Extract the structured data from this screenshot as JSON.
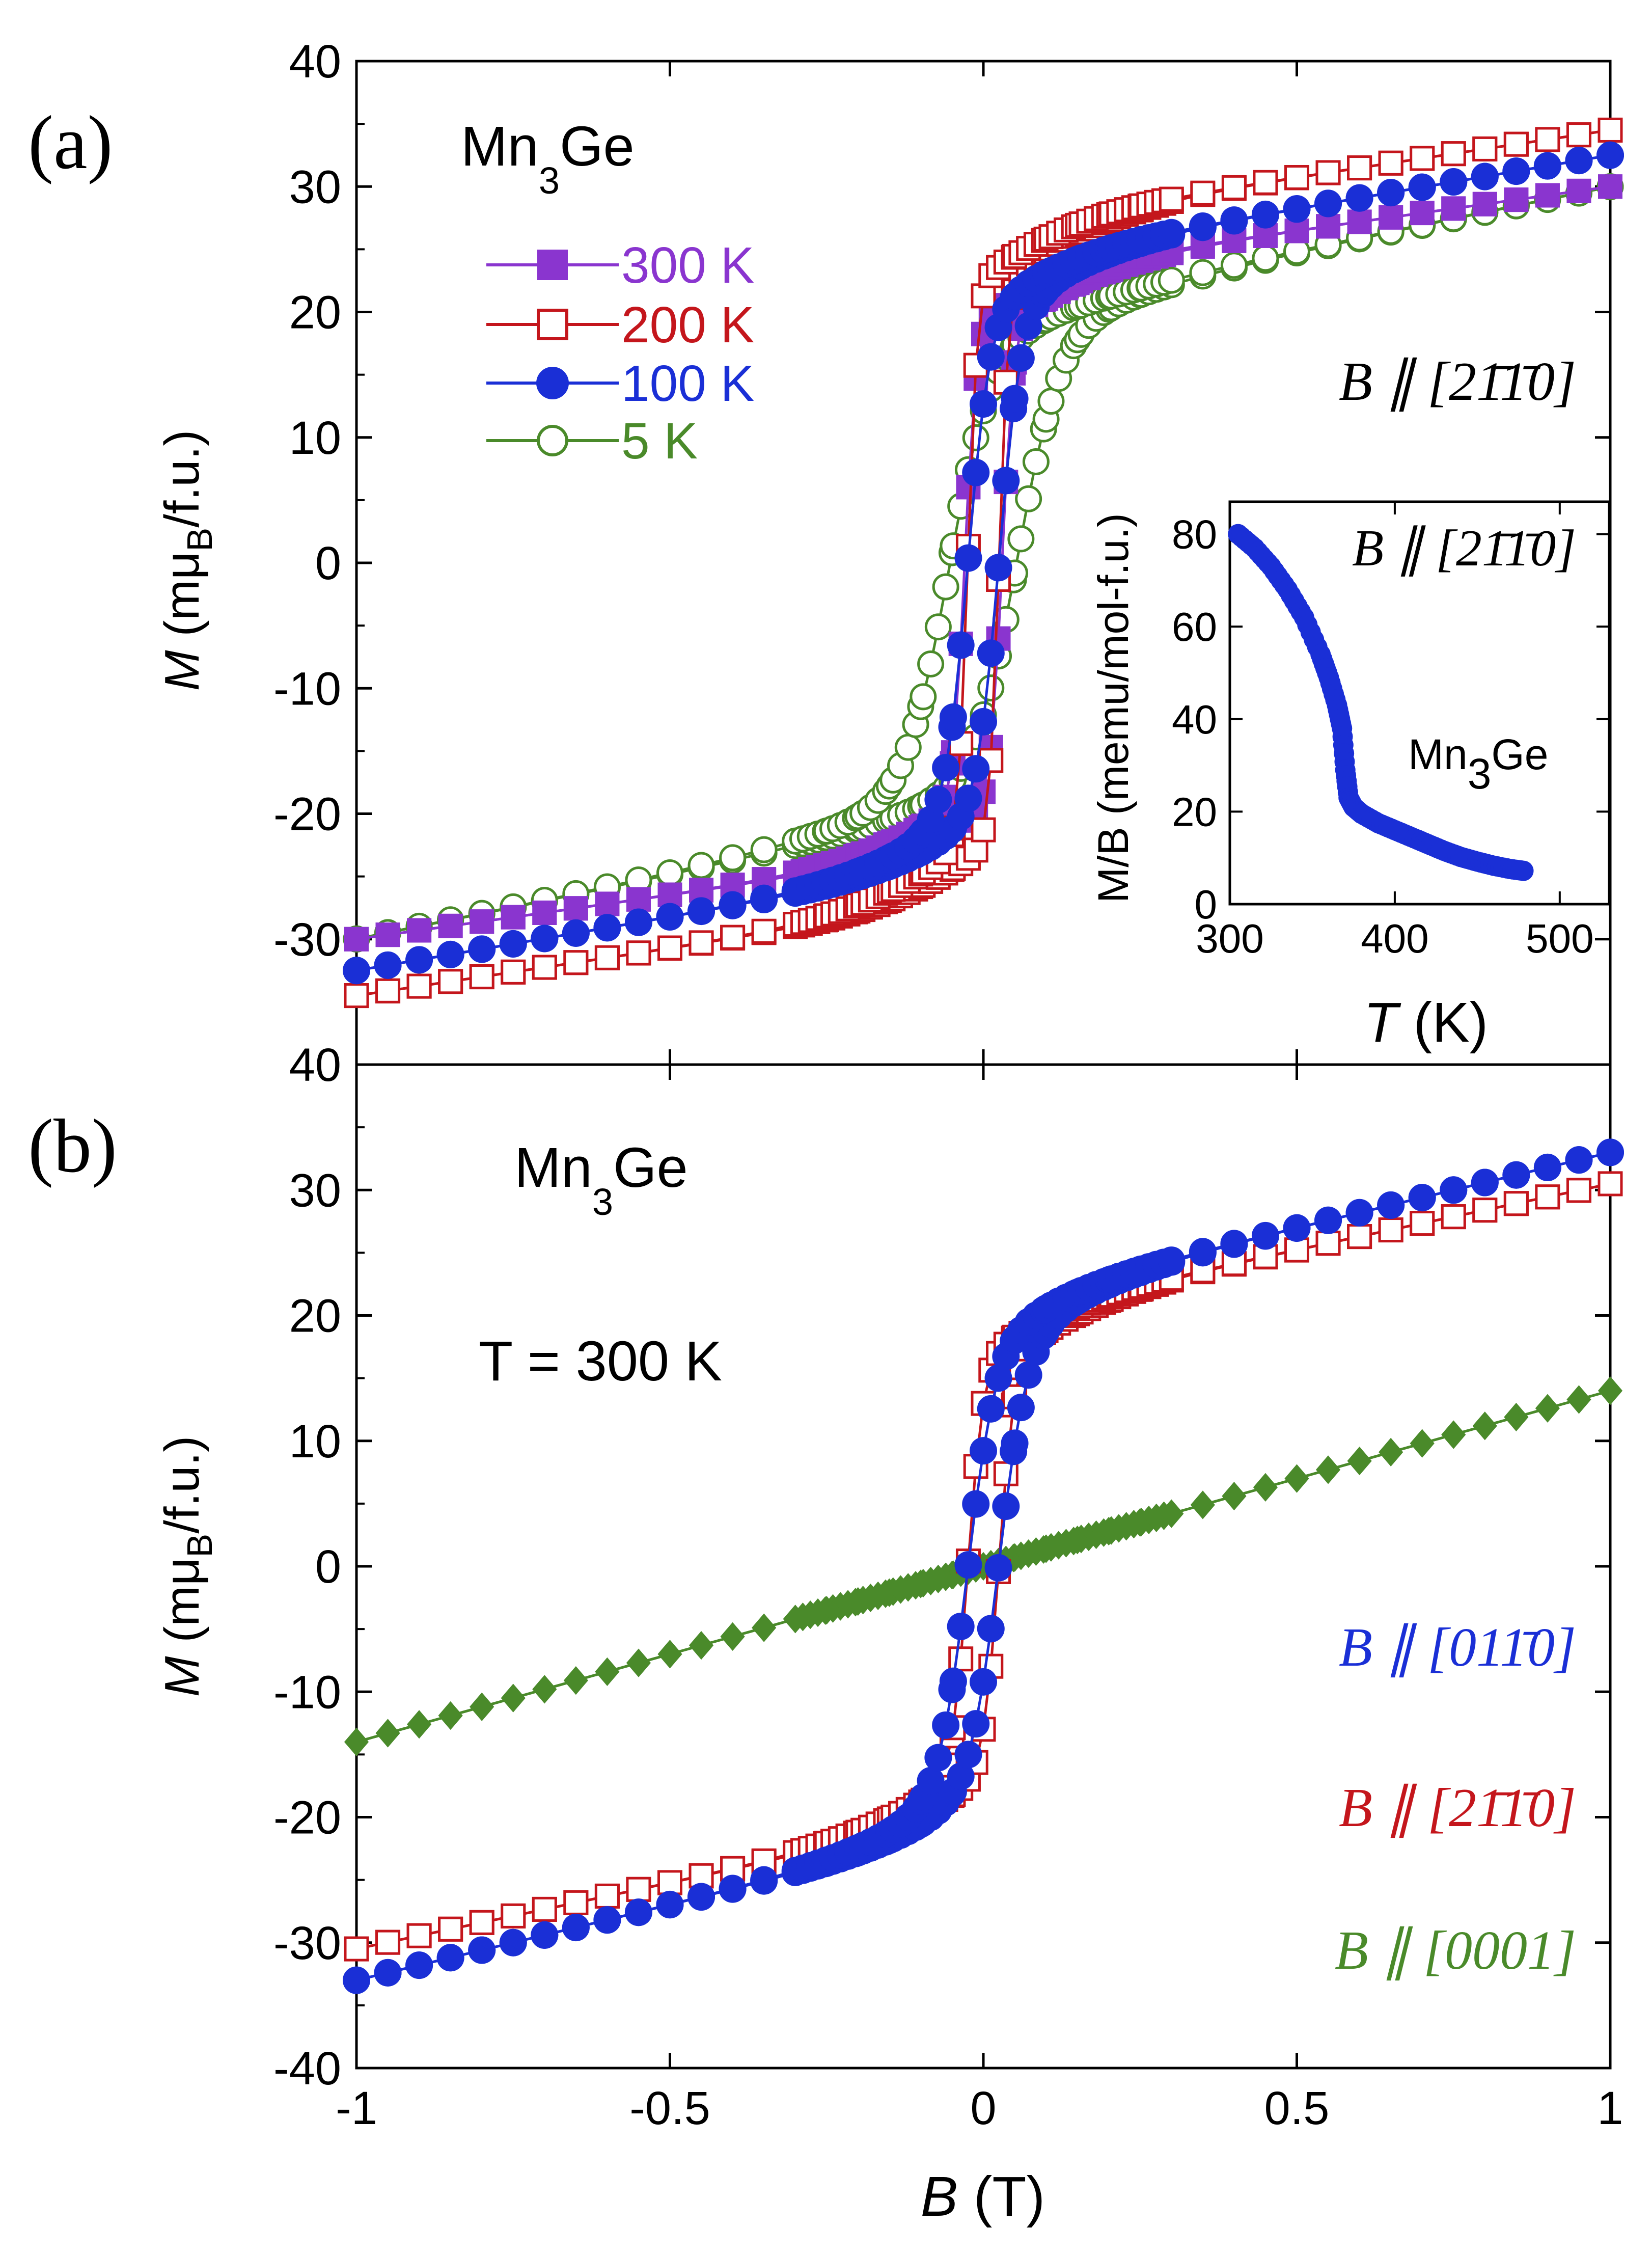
{
  "panel_a": {
    "letter": "(a)",
    "sample": "Mn",
    "sample_sub": "3",
    "sample_tail": "Ge",
    "ylabel_italic": "M",
    "ylabel_rest": " (mμ",
    "ylabel_sub": "B",
    "ylabel_unit": "/f.u.)",
    "direction": "B ∥ [21̄1̄0]",
    "legend": [
      {
        "label": "300 K",
        "color": "#8a35cf",
        "marker": "square-filled"
      },
      {
        "label": "200 K",
        "color": "#c4161c",
        "marker": "square-open"
      },
      {
        "label": "100 K",
        "color": "#1a2fd6",
        "marker": "circle-filled"
      },
      {
        "label": "5 K",
        "color": "#4a8a2a",
        "marker": "circle-open"
      }
    ],
    "yticks": [
      "-30",
      "-20",
      "-10",
      "0",
      "10",
      "20",
      "30",
      "40"
    ]
  },
  "inset": {
    "direction": "B ∥ [21̄1̄0]",
    "sample": "Mn",
    "sample_sub": "3",
    "sample_tail": "Ge",
    "ylabel": "M/B (memu/mol-f.u.)",
    "xlabel_italic": "T",
    "xlabel_rest": " (K)",
    "yticks": [
      "0",
      "20",
      "40",
      "60",
      "80"
    ],
    "xticks": [
      "300",
      "400",
      "500"
    ]
  },
  "panel_b": {
    "letter": "(b)",
    "sample": "Mn",
    "sample_sub": "3",
    "sample_tail": "Ge",
    "temperature_label": "T = 300 K",
    "ylabel_italic": "M",
    "ylabel_rest": " (mμ",
    "ylabel_sub": "B",
    "ylabel_unit": "/f.u.)",
    "directions": [
      {
        "label": "B ∥ [011̄0]",
        "color": "#1a2fd6"
      },
      {
        "label": "B ∥ [21̄1̄0]",
        "color": "#c4161c"
      },
      {
        "label": "B ∥ [0001]",
        "color": "#4a8a2a"
      }
    ],
    "yticks": [
      "-40",
      "-30",
      "-20",
      "-10",
      "0",
      "10",
      "20",
      "30",
      "40"
    ],
    "xticks": [
      "-1",
      "-0.5",
      "0",
      "0.5",
      "1"
    ],
    "xlabel_italic": "B",
    "xlabel_rest": " (T)"
  },
  "chart_data": [
    {
      "type": "line",
      "title": "(a) Mn3Ge, B ∥ [21̄1̄0]",
      "xlabel": "B (T)",
      "ylabel": "M (mμB/f.u.)",
      "xlim": [
        -1,
        1
      ],
      "ylim": [
        -40,
        40
      ],
      "series": [
        {
          "name": "300 K",
          "color": "#8a35cf",
          "Ms": 23,
          "Bc": 0.03,
          "width": 0.018,
          "slope": 7,
          "kind": "square"
        },
        {
          "name": "200 K",
          "color": "#c4161c",
          "Ms": 27,
          "Bc": 0.025,
          "width": 0.015,
          "slope": 7.5,
          "kind": "square"
        },
        {
          "name": "100 K",
          "color": "#1a2fd6",
          "Ms": 24,
          "Bc": 0.025,
          "width": 0.035,
          "slope": 8.5,
          "kind": "square"
        },
        {
          "name": "5 K",
          "color": "#4a8a2a",
          "Ms": 20,
          "Bc": 0.055,
          "width": 0.07,
          "slope": 10,
          "kind": "soft"
        }
      ]
    },
    {
      "type": "line",
      "title": "Inset: M/B vs T",
      "xlabel": "T (K)",
      "ylabel": "M/B (memu/mol-f.u.)",
      "xlim": [
        300,
        530
      ],
      "ylim": [
        0,
        87
      ],
      "series": [
        {
          "name": "B ∥ [21̄1̄0]",
          "color": "#1a2fd6",
          "x": [
            305,
            315,
            325,
            335,
            345,
            355,
            360,
            365,
            368,
            370,
            372,
            375,
            380,
            390,
            400,
            410,
            420,
            430,
            440,
            450,
            460,
            470,
            478
          ],
          "y": [
            80,
            77,
            73,
            68,
            62,
            54,
            49,
            43,
            38,
            29,
            23,
            21,
            19.5,
            17.5,
            16,
            14.5,
            13,
            11.5,
            10.2,
            9.2,
            8.3,
            7.6,
            7.2
          ]
        }
      ]
    },
    {
      "type": "line",
      "title": "(b) Mn3Ge, T = 300 K",
      "xlabel": "B (T)",
      "ylabel": "M (mμB/f.u.)",
      "xlim": [
        -1,
        1
      ],
      "ylim": [
        -40,
        40
      ],
      "series": [
        {
          "name": "B ∥ [011̄0]",
          "color": "#1a2fd6",
          "Ms": 21,
          "Bc": 0.025,
          "width": 0.045,
          "slope": 12,
          "kind": "square"
        },
        {
          "name": "B ∥ [21̄1̄0]",
          "color": "#c4161c",
          "Ms": 20,
          "Bc": 0.025,
          "width": 0.025,
          "slope": 10.5,
          "kind": "square"
        },
        {
          "name": "B ∥ [0001]",
          "color": "#4a8a2a",
          "slope": 14,
          "kind": "linear"
        }
      ]
    }
  ]
}
